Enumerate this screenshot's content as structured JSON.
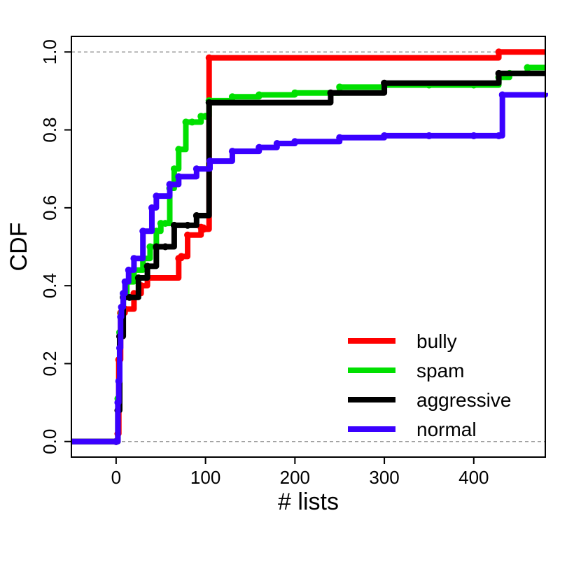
{
  "chart_data": {
    "type": "line",
    "title": "",
    "xlabel": "# lists",
    "ylabel": "CDF",
    "xlim": [
      -50,
      480
    ],
    "ylim": [
      -0.04,
      1.04
    ],
    "xticks": [
      0,
      100,
      200,
      300,
      400
    ],
    "yticks": [
      0.0,
      0.2,
      0.4,
      0.6,
      0.8,
      1.0
    ],
    "ytick_labels": [
      "0.0",
      "0.2",
      "0.4",
      "0.6",
      "0.8",
      "1.0"
    ],
    "reference_lines_y": [
      0.0,
      1.0
    ],
    "legend_position": "bottom-right",
    "series": [
      {
        "name": "bully",
        "color": "#ff0000",
        "x": [
          -50,
          0,
          2,
          3,
          5,
          10,
          20,
          28,
          35,
          70,
          73,
          80,
          95,
          98,
          104,
          428,
          480
        ],
        "y": [
          0.0,
          0.0,
          0.02,
          0.21,
          0.33,
          0.34,
          0.38,
          0.4,
          0.42,
          0.47,
          0.475,
          0.53,
          0.55,
          0.545,
          0.985,
          1.0,
          1.0
        ]
      },
      {
        "name": "spam",
        "color": "#00e000",
        "x": [
          -50,
          0,
          2,
          4,
          6,
          8,
          12,
          20,
          30,
          38,
          45,
          50,
          55,
          60,
          65,
          70,
          78,
          85,
          95,
          100,
          104,
          130,
          160,
          200,
          250,
          300,
          350,
          400,
          428,
          440,
          460,
          480
        ],
        "y": [
          0.0,
          0.0,
          0.11,
          0.28,
          0.33,
          0.38,
          0.41,
          0.44,
          0.47,
          0.5,
          0.54,
          0.56,
          0.56,
          0.65,
          0.7,
          0.75,
          0.82,
          0.82,
          0.835,
          0.835,
          0.875,
          0.885,
          0.89,
          0.895,
          0.91,
          0.915,
          0.915,
          0.915,
          0.935,
          0.945,
          0.96,
          0.96
        ]
      },
      {
        "name": "aggressive",
        "color": "#000000",
        "x": [
          -50,
          0,
          2,
          4,
          8,
          15,
          25,
          35,
          45,
          55,
          65,
          80,
          90,
          104,
          240,
          300,
          428,
          480
        ],
        "y": [
          0.0,
          0.0,
          0.08,
          0.27,
          0.37,
          0.37,
          0.42,
          0.45,
          0.5,
          0.5,
          0.555,
          0.555,
          0.58,
          0.87,
          0.895,
          0.92,
          0.945,
          0.945
        ]
      },
      {
        "name": "normal",
        "color": "#3a00ff",
        "x": [
          -50,
          0,
          2,
          3,
          4,
          5,
          6,
          8,
          10,
          14,
          20,
          30,
          40,
          45,
          60,
          70,
          90,
          105,
          130,
          160,
          180,
          200,
          250,
          300,
          350,
          400,
          428,
          432,
          480
        ],
        "y": [
          0.0,
          0.0,
          0.1,
          0.155,
          0.24,
          0.32,
          0.345,
          0.38,
          0.41,
          0.44,
          0.47,
          0.54,
          0.6,
          0.63,
          0.66,
          0.68,
          0.7,
          0.72,
          0.745,
          0.755,
          0.765,
          0.77,
          0.78,
          0.785,
          0.785,
          0.785,
          0.785,
          0.89,
          0.895
        ]
      }
    ]
  }
}
